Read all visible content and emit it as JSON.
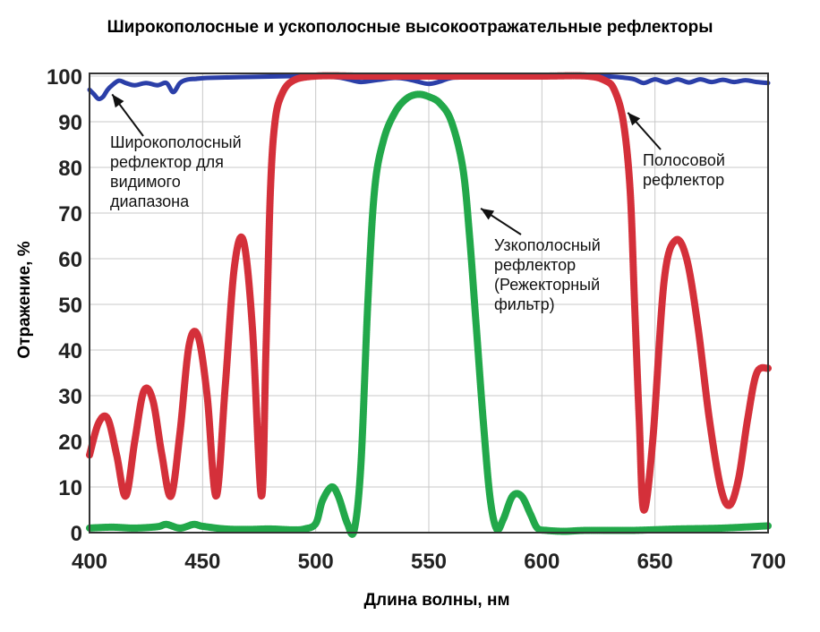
{
  "chart_data": {
    "type": "line",
    "title": "Широкополосные и ускополосные высокоотражательные рефлекторы",
    "xlabel": "Длина волны, нм",
    "ylabel": "Отражение, %",
    "xlim": [
      400,
      700
    ],
    "ylim": [
      0,
      100
    ],
    "xticks": [
      "400",
      "450",
      "500",
      "550",
      "600",
      "650",
      "700"
    ],
    "yticks": [
      "0",
      "10",
      "20",
      "30",
      "40",
      "50",
      "60",
      "70",
      "80",
      "90",
      "100"
    ],
    "grid": true,
    "series": [
      {
        "color": "#2b3fa8",
        "x": [
          400,
          402,
          404,
          406,
          408,
          410,
          413,
          416,
          420,
          425,
          430,
          434,
          437,
          440,
          443,
          447,
          452,
          460,
          470,
          480,
          490,
          500,
          510,
          515,
          520,
          528,
          535,
          540,
          545,
          550,
          555,
          560,
          570,
          580,
          590,
          600,
          610,
          620,
          630,
          640,
          645,
          650,
          655,
          660,
          665,
          670,
          675,
          680,
          685,
          690,
          695,
          700
        ],
        "y": [
          97,
          96,
          95,
          95.5,
          97,
          98,
          99,
          98.5,
          98,
          98.5,
          98,
          98.5,
          96.5,
          98.5,
          99.2,
          99.4,
          99.6,
          99.7,
          99.8,
          99.9,
          100,
          100,
          99.7,
          99.2,
          98.7,
          99.2,
          99.6,
          99.4,
          98.8,
          98.3,
          98.8,
          99.6,
          99.8,
          99.9,
          100,
          100,
          100,
          100,
          99.9,
          99.4,
          98.5,
          99.3,
          98.6,
          99.3,
          98.6,
          99.3,
          98.7,
          99.2,
          98.7,
          99.1,
          98.7,
          98.5
        ]
      },
      {
        "color": "#d4303a",
        "x": [
          400,
          404,
          408,
          412,
          416,
          420,
          424,
          428,
          432,
          436,
          440,
          444,
          448,
          452,
          456,
          460,
          464,
          468,
          472,
          476,
          478,
          480,
          482,
          485,
          490,
          500,
          520,
          540,
          560,
          580,
          600,
          620,
          628,
          632,
          636,
          639,
          641,
          643,
          645,
          649,
          654,
          659,
          664,
          669,
          674,
          679,
          683,
          687,
          691,
          695,
          700
        ],
        "y": [
          17,
          24,
          25,
          17,
          8,
          20,
          31,
          29,
          17,
          8,
          22,
          41,
          43,
          30,
          8,
          32,
          58,
          64,
          45,
          8,
          40,
          75,
          90,
          96,
          99,
          100,
          100,
          100,
          100,
          100,
          100,
          100,
          99,
          97,
          90,
          75,
          50,
          25,
          5,
          20,
          55,
          64,
          60,
          45,
          25,
          10,
          6,
          12,
          25,
          35,
          36
        ]
      },
      {
        "color": "#22a84a",
        "x": [
          400,
          410,
          420,
          430,
          434,
          440,
          446,
          450,
          460,
          470,
          480,
          490,
          495,
          500,
          503,
          507,
          510,
          514,
          517,
          520,
          523,
          526,
          530,
          535,
          540,
          545,
          550,
          555,
          560,
          565,
          568,
          571,
          574,
          577,
          580,
          583,
          587,
          591,
          595,
          598,
          602,
          610,
          620,
          640,
          660,
          680,
          700
        ],
        "y": [
          1,
          1.2,
          1,
          1.3,
          1.8,
          1,
          1.8,
          1.4,
          0.8,
          0.7,
          0.8,
          0.6,
          0.8,
          2,
          7,
          10,
          8,
          2,
          0.5,
          15,
          50,
          75,
          86,
          92,
          95,
          96,
          95.5,
          94,
          90,
          80,
          65,
          45,
          25,
          8,
          0.8,
          3,
          8,
          8,
          4,
          1,
          0.5,
          0.3,
          0.5,
          0.5,
          0.8,
          1,
          1.5
        ]
      }
    ],
    "annotations": [
      {
        "lines": [
          "Широкополосный",
          "рефлектор для",
          "видимого",
          "диапазона"
        ],
        "arrow_to": [
          410,
          96
        ]
      },
      {
        "lines": [
          "Узкополосный",
          "рефлектор",
          "(Режекторный",
          "фильтр)"
        ],
        "arrow_to": [
          573,
          71
        ]
      },
      {
        "lines": [
          "Полосовой",
          "рефлектор"
        ],
        "arrow_to": [
          638,
          92
        ]
      }
    ]
  }
}
